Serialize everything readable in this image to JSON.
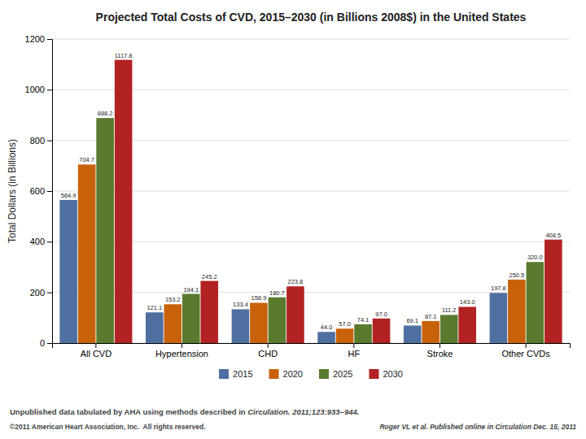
{
  "chart_data": {
    "type": "bar",
    "title": "Projected Total Costs of CVD, 2015–2030 (in Billions 2008$) in the United States",
    "categories": [
      "All CVD",
      "Hypertension",
      "CHD",
      "HF",
      "Stroke",
      "Other CVDs"
    ],
    "series": [
      {
        "name": "2015",
        "color": "#4F6FA0",
        "values": [
          564.9,
          121.1,
          133.4,
          44.0,
          69.1,
          197.8
        ],
        "value_labels": [
          "564.9",
          "121.1",
          "133.4",
          "44.0",
          "69.1",
          "197.8"
        ]
      },
      {
        "name": "2020",
        "color": "#C8620A",
        "values": [
          704.7,
          153.2,
          158.9,
          57.0,
          87.1,
          250.5
        ],
        "value_labels": [
          "704.7",
          "153.2",
          "158.9",
          "57.0",
          "87.1",
          "250.5"
        ]
      },
      {
        "name": "2025",
        "color": "#5A7A2E",
        "values": [
          888.2,
          194.1,
          180.7,
          74.1,
          111.2,
          320.0
        ],
        "value_labels": [
          "888.2",
          "194.1",
          "180.7",
          "74.1",
          "111.2",
          "320.0"
        ]
      },
      {
        "name": "2030",
        "color": "#B22222",
        "values": [
          1117.8,
          245.2,
          223.8,
          97.0,
          143.0,
          408.5
        ],
        "value_labels": [
          "1117.8",
          "245.2",
          "223.8",
          "97.0",
          "143.0",
          "408.5"
        ]
      }
    ],
    "ylabel": "Total Dollars (in Billions)",
    "ylim": [
      0,
      1200
    ],
    "yticks": [
      0,
      200,
      400,
      600,
      800,
      1000,
      1200
    ],
    "grid": true,
    "data_labels": true,
    "legend": "bottom",
    "annotations": [
      "Unpublished data tabulated by AHA using methods described in ",
      "Circulation. 2011;123:933–944.",
      "©2011 American Heart Association, Inc.  All rights reserved.",
      "Roger VL et al. Published online in Circulation Dec. 15, 2011"
    ]
  }
}
